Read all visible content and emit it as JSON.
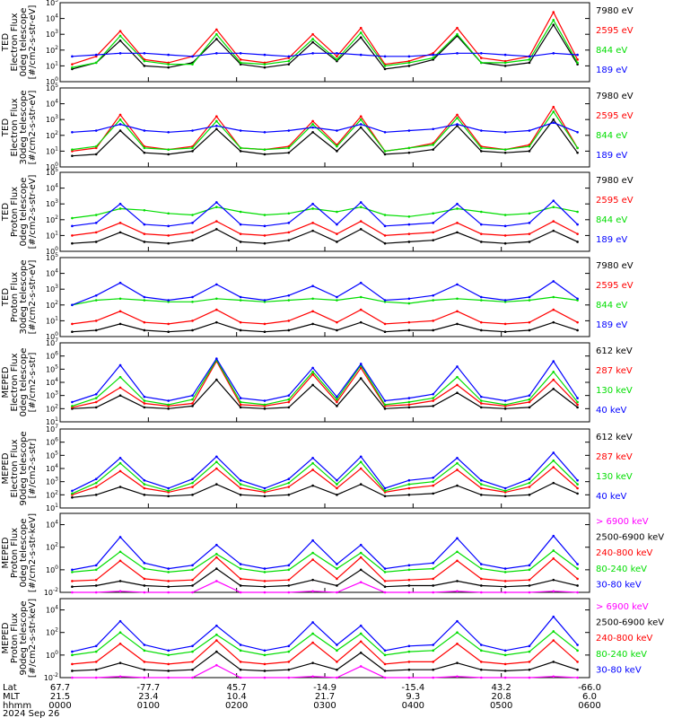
{
  "chart_data": [
    {
      "type": "line",
      "ylabel": [
        "TED",
        "Electron Flux",
        "0deg telescope",
        "[#/cm2-s-str-eV]"
      ],
      "ylog": [
        0,
        5
      ],
      "ytick_labels": [
        "10^0",
        "10^1",
        "10^2",
        "10^3",
        "10^4",
        "10^5"
      ],
      "series": [
        {
          "name": "7980 eV",
          "color": "#000000",
          "values": [
            0.8,
            1.2,
            2.6,
            1.0,
            0.9,
            1.2,
            2.7,
            1.1,
            0.9,
            1.1,
            2.5,
            1.3,
            2.8,
            0.8,
            1.0,
            1.4,
            2.9,
            1.2,
            1.0,
            1.2,
            3.6,
            1.1
          ]
        },
        {
          "name": "2595 eV",
          "color": "#ff0000",
          "values": [
            1.1,
            1.6,
            3.2,
            1.4,
            1.2,
            1.6,
            3.3,
            1.4,
            1.2,
            1.5,
            3.0,
            1.6,
            3.4,
            1.1,
            1.3,
            1.8,
            3.4,
            1.5,
            1.3,
            1.6,
            4.4,
            1.4
          ]
        },
        {
          "name": "844 eV",
          "color": "#00dd00",
          "values": [
            0.9,
            1.2,
            2.9,
            1.3,
            1.1,
            1.1,
            3.0,
            1.2,
            1.1,
            1.3,
            2.7,
            1.4,
            3.1,
            1.0,
            1.2,
            1.5,
            3.0,
            1.2,
            1.2,
            1.4,
            3.9,
            1.2
          ]
        },
        {
          "name": "189 eV",
          "color": "#0000ff",
          "values": [
            1.6,
            1.7,
            1.8,
            1.8,
            1.7,
            1.6,
            1.8,
            1.8,
            1.7,
            1.6,
            1.8,
            1.8,
            1.7,
            1.6,
            1.6,
            1.7,
            1.8,
            1.8,
            1.7,
            1.6,
            1.8,
            1.7
          ]
        }
      ]
    },
    {
      "type": "line",
      "ylabel": [
        "TED",
        "Electron Flux",
        "30deg telescope",
        "[#/cm2-s-str-eV]"
      ],
      "ylog": [
        0,
        5
      ],
      "ytick_labels": [
        "10^0",
        "10^1",
        "10^2",
        "10^3",
        "10^4",
        "10^5"
      ],
      "series": [
        {
          "name": "7980 eV",
          "color": "#000000",
          "values": [
            0.7,
            0.8,
            2.3,
            0.9,
            0.8,
            1.0,
            2.4,
            1.0,
            0.8,
            0.9,
            2.2,
            1.0,
            2.5,
            0.8,
            0.9,
            1.1,
            2.6,
            1.0,
            0.9,
            1.0,
            3.0,
            0.9
          ]
        },
        {
          "name": "2595 eV",
          "color": "#ff0000",
          "values": [
            1.0,
            1.2,
            3.3,
            1.3,
            1.1,
            1.3,
            3.2,
            1.2,
            1.1,
            1.3,
            2.9,
            1.4,
            3.2,
            1.0,
            1.2,
            1.5,
            3.3,
            1.3,
            1.1,
            1.4,
            3.8,
            1.2
          ]
        },
        {
          "name": "844 eV",
          "color": "#00dd00",
          "values": [
            1.1,
            1.3,
            3.0,
            1.2,
            1.1,
            1.2,
            2.9,
            1.2,
            1.1,
            1.2,
            2.7,
            1.3,
            3.0,
            1.0,
            1.2,
            1.4,
            3.1,
            1.2,
            1.1,
            1.3,
            3.5,
            1.2
          ]
        },
        {
          "name": "189 eV",
          "color": "#0000ff",
          "values": [
            2.2,
            2.3,
            2.7,
            2.3,
            2.2,
            2.3,
            2.6,
            2.3,
            2.2,
            2.3,
            2.5,
            2.3,
            2.7,
            2.2,
            2.3,
            2.4,
            2.7,
            2.3,
            2.2,
            2.3,
            2.8,
            2.2
          ]
        }
      ]
    },
    {
      "type": "line",
      "ylabel": [
        "TED",
        "Proton Flux",
        "0deg telescope",
        "[#/cm2-s-str-eV]"
      ],
      "ylog": [
        0,
        5
      ],
      "ytick_labels": [
        "10^0",
        "10^1",
        "10^2",
        "10^3",
        "10^4",
        "10^5"
      ],
      "series": [
        {
          "name": "7980 eV",
          "color": "#000000",
          "values": [
            0.5,
            0.6,
            1.2,
            0.6,
            0.5,
            0.7,
            1.4,
            0.6,
            0.5,
            0.7,
            1.3,
            0.6,
            1.4,
            0.5,
            0.6,
            0.7,
            1.2,
            0.6,
            0.5,
            0.6,
            1.3,
            0.6
          ]
        },
        {
          "name": "2595 eV",
          "color": "#ff0000",
          "values": [
            1.0,
            1.2,
            1.8,
            1.1,
            1.0,
            1.2,
            1.9,
            1.1,
            1.0,
            1.2,
            1.8,
            1.1,
            1.9,
            1.0,
            1.1,
            1.2,
            1.8,
            1.1,
            1.0,
            1.1,
            1.9,
            1.1
          ]
        },
        {
          "name": "844 eV",
          "color": "#00dd00",
          "values": [
            2.1,
            2.3,
            2.7,
            2.6,
            2.4,
            2.3,
            2.8,
            2.5,
            2.3,
            2.4,
            2.7,
            2.5,
            2.8,
            2.3,
            2.2,
            2.4,
            2.7,
            2.5,
            2.3,
            2.4,
            2.8,
            2.5
          ]
        },
        {
          "name": "189 eV",
          "color": "#0000ff",
          "values": [
            1.6,
            1.8,
            3.0,
            1.7,
            1.6,
            1.8,
            3.1,
            1.7,
            1.6,
            1.8,
            3.0,
            1.7,
            3.1,
            1.6,
            1.7,
            1.8,
            3.0,
            1.7,
            1.6,
            1.8,
            3.2,
            1.7
          ]
        }
      ]
    },
    {
      "type": "line",
      "ylabel": [
        "TED",
        "Proton Flux",
        "30deg telescope",
        "[#/cm2-s-str-eV]"
      ],
      "ylog": [
        0,
        5
      ],
      "ytick_labels": [
        "10^0",
        "10^1",
        "10^2",
        "10^3",
        "10^4",
        "10^5"
      ],
      "series": [
        {
          "name": "7980 eV",
          "color": "#000000",
          "values": [
            0.3,
            0.4,
            0.8,
            0.4,
            0.3,
            0.4,
            0.9,
            0.4,
            0.3,
            0.4,
            0.8,
            0.4,
            0.9,
            0.3,
            0.4,
            0.4,
            0.8,
            0.4,
            0.3,
            0.4,
            0.9,
            0.4
          ]
        },
        {
          "name": "2595 eV",
          "color": "#ff0000",
          "values": [
            0.8,
            1.0,
            1.6,
            0.9,
            0.8,
            1.0,
            1.7,
            0.9,
            0.8,
            1.0,
            1.6,
            0.9,
            1.7,
            0.8,
            0.9,
            1.0,
            1.6,
            0.9,
            0.8,
            0.9,
            1.7,
            0.9
          ]
        },
        {
          "name": "844 eV",
          "color": "#00dd00",
          "values": [
            2.0,
            2.3,
            2.4,
            2.3,
            2.2,
            2.2,
            2.4,
            2.3,
            2.2,
            2.3,
            2.4,
            2.3,
            2.5,
            2.2,
            2.1,
            2.3,
            2.4,
            2.3,
            2.2,
            2.3,
            2.5,
            2.3
          ]
        },
        {
          "name": "189 eV",
          "color": "#0000ff",
          "values": [
            2.0,
            2.6,
            3.4,
            2.5,
            2.3,
            2.5,
            3.3,
            2.5,
            2.3,
            2.6,
            3.2,
            2.5,
            3.4,
            2.3,
            2.4,
            2.6,
            3.3,
            2.5,
            2.3,
            2.5,
            3.5,
            2.4
          ]
        }
      ]
    },
    {
      "type": "line",
      "ylabel": [
        "MEPED",
        "Electron Flux",
        "0deg telescope",
        "[#/cm2-s-str]"
      ],
      "ylog": [
        1,
        7
      ],
      "ytick_labels": [
        "10^1",
        "10^2",
        "10^3",
        "10^4",
        "10^5",
        "10^6",
        "10^7"
      ],
      "series": [
        {
          "name": "612 keV",
          "color": "#000000",
          "values": [
            2.0,
            2.1,
            3.0,
            2.1,
            2.0,
            2.2,
            4.2,
            2.1,
            2.0,
            2.1,
            3.8,
            2.2,
            4.3,
            2.0,
            2.1,
            2.2,
            3.2,
            2.1,
            2.0,
            2.1,
            3.5,
            2.1
          ]
        },
        {
          "name": "287 keV",
          "color": "#ff0000",
          "values": [
            2.1,
            2.5,
            3.6,
            2.4,
            2.2,
            2.4,
            5.6,
            2.3,
            2.2,
            2.5,
            4.6,
            2.5,
            5.1,
            2.2,
            2.3,
            2.6,
            3.8,
            2.4,
            2.2,
            2.5,
            4.2,
            2.3
          ]
        },
        {
          "name": "130 keV",
          "color": "#00dd00",
          "values": [
            2.2,
            2.8,
            4.4,
            2.6,
            2.3,
            2.7,
            5.7,
            2.5,
            2.3,
            2.7,
            4.8,
            2.7,
            5.3,
            2.3,
            2.5,
            2.8,
            4.4,
            2.6,
            2.3,
            2.7,
            4.8,
            2.5
          ]
        },
        {
          "name": "40 keV",
          "color": "#0000ff",
          "values": [
            2.5,
            3.1,
            5.3,
            2.9,
            2.6,
            3.0,
            5.8,
            2.8,
            2.6,
            3.0,
            5.1,
            2.9,
            5.4,
            2.6,
            2.8,
            3.1,
            5.2,
            2.9,
            2.6,
            3.0,
            5.6,
            2.8
          ]
        }
      ]
    },
    {
      "type": "line",
      "ylabel": [
        "MEPED",
        "Electron Flux",
        "90deg telescope",
        "[#/cm2-s-str]"
      ],
      "ylog": [
        1,
        7
      ],
      "ytick_labels": [
        "10^1",
        "10^2",
        "10^3",
        "10^4",
        "10^5",
        "10^6",
        "10^7"
      ],
      "series": [
        {
          "name": "612 keV",
          "color": "#000000",
          "values": [
            1.8,
            2.0,
            2.6,
            2.0,
            1.9,
            2.0,
            2.8,
            2.0,
            1.9,
            2.0,
            2.7,
            2.0,
            2.8,
            1.9,
            2.0,
            2.1,
            2.7,
            2.0,
            1.9,
            2.0,
            2.9,
            2.1
          ]
        },
        {
          "name": "287 keV",
          "color": "#ff0000",
          "values": [
            2.0,
            2.6,
            3.8,
            2.5,
            2.2,
            2.6,
            4.0,
            2.5,
            2.2,
            2.6,
            3.9,
            2.5,
            4.0,
            2.2,
            2.5,
            2.7,
            3.9,
            2.5,
            2.2,
            2.6,
            4.1,
            2.5
          ]
        },
        {
          "name": "130 keV",
          "color": "#00dd00",
          "values": [
            2.1,
            2.9,
            4.4,
            2.8,
            2.3,
            2.9,
            4.5,
            2.8,
            2.3,
            2.9,
            4.4,
            2.8,
            4.5,
            2.3,
            2.8,
            3.0,
            4.4,
            2.8,
            2.3,
            2.9,
            4.6,
            2.8
          ]
        },
        {
          "name": "40 keV",
          "color": "#0000ff",
          "values": [
            2.3,
            3.2,
            4.8,
            3.1,
            2.5,
            3.2,
            4.9,
            3.1,
            2.5,
            3.2,
            4.8,
            3.1,
            4.9,
            2.5,
            3.1,
            3.3,
            4.8,
            3.1,
            2.5,
            3.2,
            5.2,
            3.1
          ]
        }
      ]
    },
    {
      "type": "line",
      "ylabel": [
        "MEPED",
        "Proton Flux",
        "0deg telescope",
        "[#/cm2-s-str-keV]"
      ],
      "ylog": [
        -2,
        5
      ],
      "ytick_labels": [
        "10^-2",
        "10^0",
        "10^2",
        "10^4"
      ],
      "series": [
        {
          "name": "> 6900 keV",
          "color": "#ff00ff",
          "values": [
            -2.0,
            -2.0,
            -1.9,
            -2.0,
            -2.0,
            -2.0,
            -1.0,
            -2.0,
            -2.0,
            -2.0,
            -1.9,
            -2.0,
            -1.1,
            -2.0,
            -2.0,
            -2.0,
            -1.9,
            -2.0,
            -2.0,
            -2.0,
            -1.9,
            -2.0
          ]
        },
        {
          "name": "2500-6900 keV",
          "color": "#000000",
          "values": [
            -1.5,
            -1.4,
            -1.0,
            -1.4,
            -1.5,
            -1.4,
            0.1,
            -1.4,
            -1.5,
            -1.4,
            -0.9,
            -1.4,
            0.0,
            -1.5,
            -1.4,
            -1.4,
            -1.0,
            -1.4,
            -1.5,
            -1.4,
            -0.9,
            -1.4
          ]
        },
        {
          "name": "240-800 keV",
          "color": "#ff0000",
          "values": [
            -1.0,
            -0.9,
            0.8,
            -0.8,
            -1.0,
            -0.9,
            1.1,
            -0.8,
            -1.0,
            -0.9,
            0.9,
            -0.8,
            1.1,
            -1.0,
            -0.9,
            -0.8,
            0.8,
            -0.8,
            -1.0,
            -0.9,
            1.0,
            -0.8
          ]
        },
        {
          "name": "80-240 keV",
          "color": "#00dd00",
          "values": [
            -0.2,
            0.0,
            1.6,
            0.1,
            -0.2,
            0.0,
            1.4,
            0.1,
            -0.2,
            0.0,
            1.5,
            0.1,
            1.5,
            -0.2,
            0.0,
            0.1,
            1.6,
            0.1,
            -0.2,
            0.0,
            1.7,
            0.1
          ]
        },
        {
          "name": "30-80 keV",
          "color": "#0000ff",
          "values": [
            0.0,
            0.4,
            2.9,
            0.6,
            0.1,
            0.4,
            2.2,
            0.5,
            0.1,
            0.4,
            2.6,
            0.5,
            2.2,
            0.1,
            0.4,
            0.6,
            2.8,
            0.5,
            0.1,
            0.4,
            3.0,
            0.5
          ]
        }
      ]
    },
    {
      "type": "line",
      "ylabel": [
        "MEPED",
        "Proton Flux",
        "90deg telescope",
        "[#/cm2-s-str-keV]"
      ],
      "ylog": [
        -2,
        5
      ],
      "ytick_labels": [
        "10^-2",
        "10^0",
        "10^2",
        "10^4"
      ],
      "series": [
        {
          "name": "> 6900 keV",
          "color": "#ff00ff",
          "values": [
            -2.0,
            -2.0,
            -1.9,
            -2.0,
            -2.0,
            -2.0,
            -0.9,
            -2.0,
            -2.0,
            -2.0,
            -1.9,
            -2.0,
            -1.0,
            -2.0,
            -2.0,
            -2.0,
            -1.9,
            -2.0,
            -2.0,
            -2.0,
            -1.9,
            -2.0
          ]
        },
        {
          "name": "2500-6900 keV",
          "color": "#000000",
          "values": [
            -1.4,
            -1.3,
            -0.7,
            -1.3,
            -1.4,
            -1.3,
            0.3,
            -1.3,
            -1.4,
            -1.3,
            -0.7,
            -1.3,
            0.2,
            -1.4,
            -1.3,
            -1.3,
            -0.7,
            -1.3,
            -1.4,
            -1.3,
            -0.6,
            -1.3
          ]
        },
        {
          "name": "240-800 keV",
          "color": "#ff0000",
          "values": [
            -0.8,
            -0.6,
            1.0,
            -0.6,
            -0.8,
            -0.6,
            1.3,
            -0.6,
            -0.8,
            -0.6,
            1.1,
            -0.6,
            1.2,
            -0.8,
            -0.6,
            -0.6,
            1.0,
            -0.6,
            -0.8,
            -0.6,
            1.3,
            -0.6
          ]
        },
        {
          "name": "80-240 keV",
          "color": "#00dd00",
          "values": [
            0.0,
            0.3,
            2.0,
            0.4,
            0.0,
            0.3,
            1.8,
            0.4,
            0.0,
            0.3,
            1.9,
            0.4,
            1.9,
            0.0,
            0.3,
            0.4,
            2.0,
            0.4,
            0.0,
            0.3,
            2.1,
            0.4
          ]
        },
        {
          "name": "30-80 keV",
          "color": "#0000ff",
          "values": [
            0.3,
            0.8,
            3.0,
            0.9,
            0.4,
            0.8,
            2.6,
            0.9,
            0.4,
            0.8,
            2.9,
            0.9,
            2.6,
            0.4,
            0.8,
            0.9,
            3.0,
            0.9,
            0.4,
            0.8,
            3.4,
            0.9
          ]
        }
      ]
    }
  ],
  "footer": {
    "row_labels": [
      "Lat",
      "MLT",
      "hhmm",
      "2024 Sep 26"
    ],
    "lat": [
      "67.7",
      "-77.7",
      "45.7",
      "-14.9",
      "-15.4",
      "43.2",
      "-66.0"
    ],
    "mlt": [
      "21.5",
      "23.4",
      "10.4",
      "21.7",
      "9.3",
      "20.8",
      "6.0"
    ],
    "hhmm": [
      "0000",
      "0100",
      "0200",
      "0300",
      "0400",
      "0500",
      "0600"
    ]
  }
}
